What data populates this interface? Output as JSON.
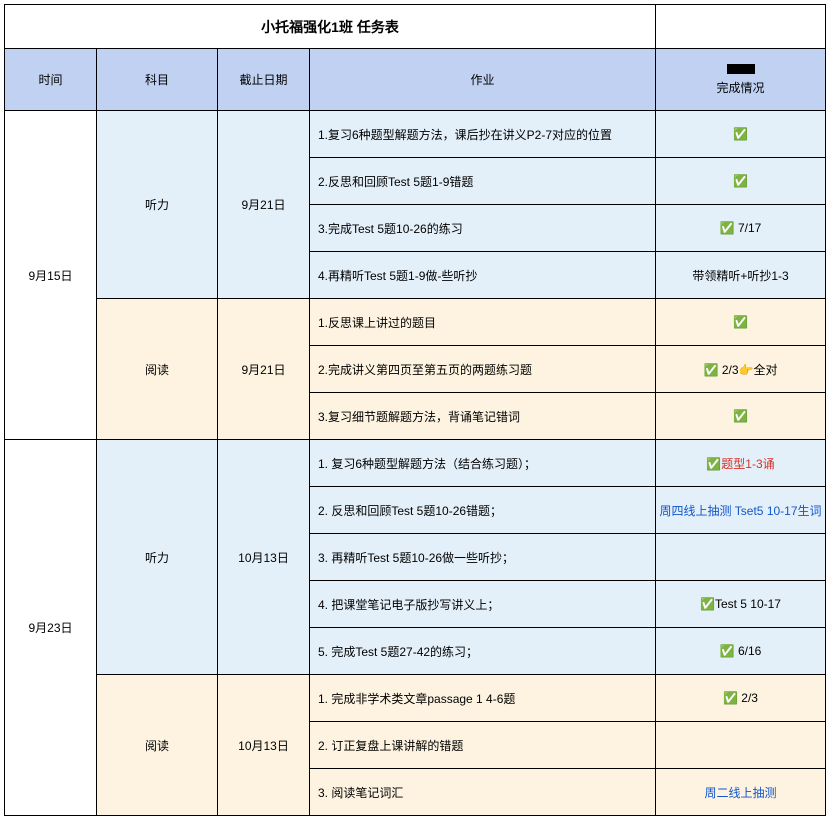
{
  "title": "小托福强化1班 任务表",
  "headers": {
    "time": "时间",
    "subject": "科目",
    "due": "截止日期",
    "homework": "作业",
    "status_suffix": "完成情况"
  },
  "check": "✅",
  "groups": [
    {
      "date": "9月15日",
      "subjects": [
        {
          "name": "听力",
          "due": "9月21日",
          "bg": "blue-bg",
          "rows": [
            {
              "hw": "1.复习6种题型解题方法，课后抄在讲义P2-7对应的位置",
              "status_html": "✅"
            },
            {
              "hw": "2.反思和回顾Test 5题1-9错题",
              "status_html": "✅"
            },
            {
              "hw": "3.完成Test 5题10-26的练习",
              "status_html": "✅ 7/17"
            },
            {
              "hw": "4.再精听Test 5题1-9做-些听抄",
              "status_html": "带领精听+听抄1-3"
            }
          ]
        },
        {
          "name": "阅读",
          "due": "9月21日",
          "bg": "cream-bg",
          "rows": [
            {
              "hw": "1.反思课上讲过的题目",
              "status_html": "✅"
            },
            {
              "hw": "2.完成讲义第四页至第五页的两题练习题",
              "status_html": "✅ 2/3👉全对"
            },
            {
              "hw": "3.复习细节题解题方法，背诵笔记错词",
              "status_html": "✅"
            }
          ]
        }
      ]
    },
    {
      "date": "9月23日",
      "subjects": [
        {
          "name": "听力",
          "due": "10月13日",
          "bg": "blue-bg",
          "rows": [
            {
              "hw": "1. 复习6种题型解题方法（结合练习题）；",
              "status_html": "✅<span class=\"red\">题型1-3诵</span>"
            },
            {
              "hw": "2. 反思和回顾Test 5题10-26错题；",
              "status_html": "<span class=\"blue\">周四线上抽测 Tset5 10-17生词</span>"
            },
            {
              "hw": "3. 再精听Test 5题10-26做一些听抄；",
              "status_html": ""
            },
            {
              "hw": "4. 把课堂笔记电子版抄写讲义上；",
              "status_html": "✅Test 5 10-17"
            },
            {
              "hw": "5. 完成Test 5题27-42的练习；",
              "status_html": "✅ 6/16"
            }
          ]
        },
        {
          "name": "阅读",
          "due": "10月13日",
          "bg": "cream-bg",
          "rows": [
            {
              "hw": "1. 完成非学术类文章passage 1 4-6题",
              "status_html": "✅ 2/3"
            },
            {
              "hw": "2. 订正复盘上课讲解的错题",
              "status_html": ""
            },
            {
              "hw": "3. 阅读笔记词汇",
              "status_html": "<span class=\"blue\">周二线上抽测</span>"
            }
          ]
        }
      ]
    }
  ]
}
